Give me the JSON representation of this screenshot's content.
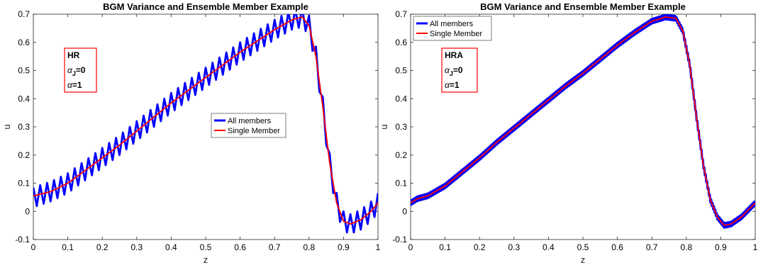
{
  "chart_data": [
    {
      "type": "line",
      "title": "BGM  Variance and Ensemble Member Example",
      "xlabel": "z",
      "ylabel": "u",
      "xlim": [
        0,
        1
      ],
      "ylim": [
        -0.1,
        0.7
      ],
      "xticks": [
        "0",
        "0.1",
        "0.2",
        "0.3",
        "0.4",
        "0.5",
        "0.6",
        "0.7",
        "0.8",
        "0.9",
        "1"
      ],
      "yticks": [
        "-0.1",
        "0",
        "0.1",
        "0.2",
        "0.3",
        "0.4",
        "0.5",
        "0.6",
        "0.7"
      ],
      "legend_placement": "center",
      "annotation": {
        "line1": "HR",
        "line2_sym": "α",
        "line2_sub": "J",
        "line2_rest": "=0",
        "line3_sym": "α",
        "line3_rest": "=1"
      },
      "series": [
        {
          "name": "All members",
          "color": "#0000ff",
          "spread": 0.035,
          "x": [
            0,
            0.05,
            0.1,
            0.15,
            0.2,
            0.25,
            0.3,
            0.35,
            0.4,
            0.45,
            0.5,
            0.55,
            0.6,
            0.65,
            0.7,
            0.75,
            0.78,
            0.8,
            0.82,
            0.84,
            0.86,
            0.88,
            0.9,
            0.92,
            0.95,
            0.98,
            1.0
          ],
          "y": [
            0.05,
            0.07,
            0.1,
            0.145,
            0.19,
            0.235,
            0.285,
            0.335,
            0.385,
            0.43,
            0.475,
            0.52,
            0.565,
            0.605,
            0.645,
            0.68,
            0.69,
            0.66,
            0.55,
            0.37,
            0.17,
            0.03,
            -0.035,
            -0.045,
            -0.03,
            0.0,
            0.03
          ]
        },
        {
          "name": "Single Member",
          "color": "#ff0000",
          "x": [
            0,
            0.05,
            0.1,
            0.15,
            0.2,
            0.25,
            0.3,
            0.35,
            0.4,
            0.45,
            0.5,
            0.55,
            0.6,
            0.65,
            0.7,
            0.75,
            0.78,
            0.8,
            0.82,
            0.84,
            0.86,
            0.88,
            0.9,
            0.92,
            0.95,
            0.98,
            1.0
          ],
          "y": [
            0.055,
            0.07,
            0.1,
            0.145,
            0.19,
            0.235,
            0.285,
            0.335,
            0.385,
            0.43,
            0.475,
            0.52,
            0.565,
            0.605,
            0.645,
            0.68,
            0.69,
            0.66,
            0.55,
            0.37,
            0.17,
            0.03,
            -0.035,
            -0.045,
            -0.03,
            0.0,
            0.03
          ]
        }
      ]
    },
    {
      "type": "line",
      "title": "BGM  Variance and Ensemble Member Example",
      "xlabel": "z",
      "ylabel": "u",
      "xlim": [
        0,
        1
      ],
      "ylim": [
        -0.1,
        0.7
      ],
      "xticks": [
        "0",
        "0.1",
        "0.2",
        "0.3",
        "0.4",
        "0.5",
        "0.6",
        "0.7",
        "0.8",
        "0.9",
        "1"
      ],
      "yticks": [
        "-0.1",
        "0",
        "0.1",
        "0.2",
        "0.3",
        "0.4",
        "0.5",
        "0.6",
        "0.7"
      ],
      "legend_placement": "top-left",
      "annotation": {
        "line1": "HRA",
        "line2_sym": "α",
        "line2_sub": "J",
        "line2_rest": "=0",
        "line3_sym": "α",
        "line3_rest": "=1"
      },
      "series": [
        {
          "name": "All members",
          "color": "#0000ff",
          "spread": 0.008,
          "x": [
            0,
            0.02,
            0.05,
            0.1,
            0.15,
            0.2,
            0.25,
            0.3,
            0.35,
            0.4,
            0.45,
            0.5,
            0.55,
            0.6,
            0.65,
            0.7,
            0.74,
            0.77,
            0.79,
            0.81,
            0.83,
            0.85,
            0.87,
            0.89,
            0.91,
            0.93,
            0.96,
            1.0
          ],
          "y": [
            0.03,
            0.045,
            0.055,
            0.09,
            0.14,
            0.19,
            0.245,
            0.295,
            0.345,
            0.395,
            0.445,
            0.49,
            0.54,
            0.59,
            0.635,
            0.675,
            0.69,
            0.685,
            0.64,
            0.52,
            0.33,
            0.16,
            0.04,
            -0.02,
            -0.05,
            -0.045,
            -0.02,
            0.03
          ]
        },
        {
          "name": "Single Member",
          "color": "#ff0000",
          "x": [
            0,
            0.02,
            0.05,
            0.1,
            0.15,
            0.2,
            0.25,
            0.3,
            0.35,
            0.4,
            0.45,
            0.5,
            0.55,
            0.6,
            0.65,
            0.7,
            0.74,
            0.77,
            0.79,
            0.81,
            0.83,
            0.85,
            0.87,
            0.89,
            0.91,
            0.93,
            0.96,
            1.0
          ],
          "y": [
            0.03,
            0.045,
            0.055,
            0.09,
            0.14,
            0.19,
            0.245,
            0.295,
            0.345,
            0.395,
            0.445,
            0.49,
            0.54,
            0.59,
            0.635,
            0.675,
            0.69,
            0.685,
            0.64,
            0.52,
            0.33,
            0.16,
            0.04,
            -0.02,
            -0.05,
            -0.045,
            -0.02,
            0.03
          ]
        }
      ]
    }
  ]
}
